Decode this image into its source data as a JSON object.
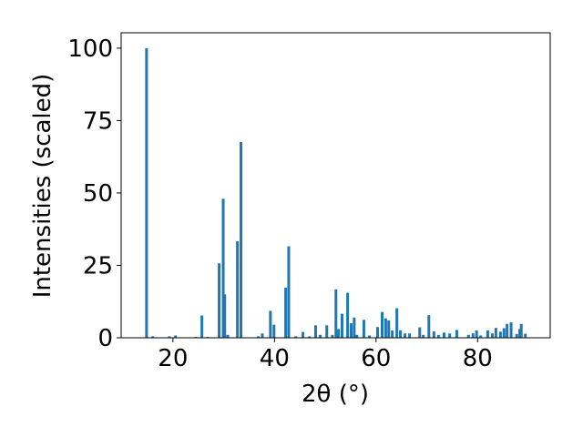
{
  "chart_data": {
    "type": "bar",
    "xlabel": "2θ (°)",
    "ylabel": "Intensities (scaled)",
    "x": [
      14.8,
      16.0,
      19.3,
      20.5,
      24.5,
      25.7,
      26.8,
      29.1,
      29.9,
      30.2,
      30.8,
      32.7,
      33.4,
      36.8,
      37.6,
      39.2,
      39.9,
      42.2,
      42.8,
      44.2,
      45.6,
      46.9,
      48.1,
      49.0,
      50.3,
      51.4,
      52.1,
      52.6,
      53.3,
      54.4,
      55.1,
      55.7,
      56.2,
      57.6,
      58.7,
      60.3,
      61.2,
      61.9,
      62.5,
      63.2,
      64.1,
      64.8,
      65.7,
      66.6,
      68.6,
      69.3,
      70.4,
      71.4,
      72.3,
      73.4,
      74.5,
      75.9,
      78.2,
      79.1,
      79.8,
      80.6,
      82.0,
      82.9,
      83.6,
      84.5,
      85.2,
      85.8,
      86.6,
      87.7,
      88.3,
      88.6,
      89.4
    ],
    "values": [
      100,
      0.5,
      0.5,
      0.8,
      0.3,
      7.7,
      0.3,
      25.7,
      48,
      15,
      1,
      33.3,
      67.6,
      0.5,
      1.5,
      9.3,
      4.5,
      17.3,
      31.6,
      0.5,
      2,
      0.5,
      4.3,
      1,
      4.3,
      1,
      16.7,
      3,
      8.3,
      15.5,
      5,
      7,
      1,
      6.2,
      0.8,
      3.7,
      8.9,
      6.7,
      6,
      2.5,
      10.2,
      2.5,
      1.5,
      1.5,
      3.6,
      1,
      7.8,
      2.2,
      1,
      1.8,
      1.5,
      2.7,
      1,
      1.5,
      2.5,
      0.8,
      2.5,
      1.5,
      3.4,
      2.1,
      3.3,
      4.8,
      5.3,
      1.3,
      3,
      4.8,
      1.4
    ],
    "color": "#1f77b4",
    "xlim": [
      9.8,
      94.3
    ],
    "ylim": [
      0,
      105
    ],
    "xticks": [
      20,
      40,
      60,
      80
    ],
    "yticks": [
      0,
      25,
      50,
      75,
      100
    ]
  }
}
